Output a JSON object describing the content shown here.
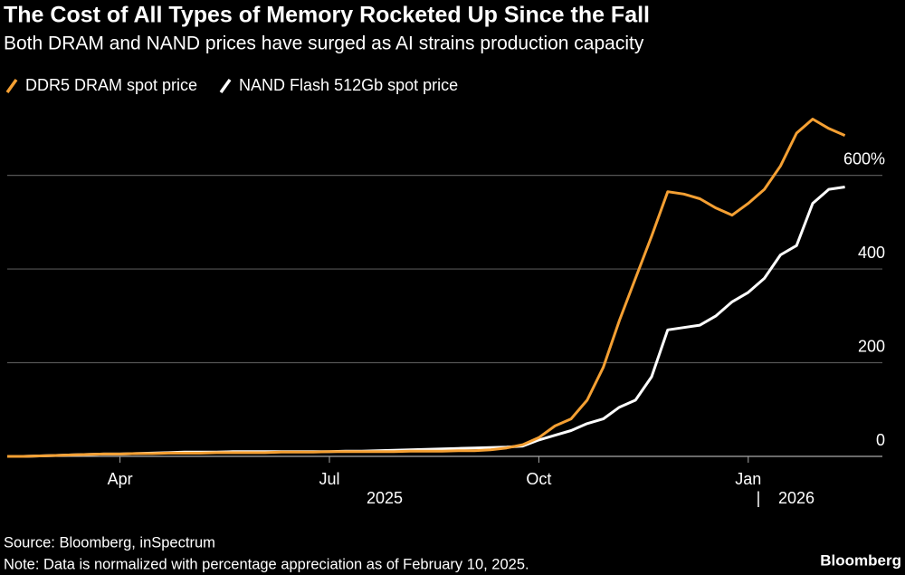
{
  "chart_data": {
    "type": "line",
    "title": "The Cost of All Types of Memory Rocketed Up Since the Fall",
    "subtitle": "Both DRAM and NAND prices have surged as AI strains production capacity",
    "categories": [
      null,
      null,
      null,
      null,
      null,
      null,
      null,
      "Apr",
      null,
      null,
      null,
      null,
      null,
      null,
      null,
      null,
      null,
      null,
      null,
      null,
      "Jul",
      null,
      null,
      null,
      null,
      null,
      null,
      null,
      null,
      null,
      null,
      null,
      null,
      "Oct",
      null,
      null,
      null,
      null,
      null,
      null,
      null,
      null,
      null,
      null,
      null,
      null,
      "Jan",
      null,
      null,
      null,
      null,
      null,
      null
    ],
    "year_labels": [
      "2025",
      "2026"
    ],
    "series": [
      {
        "name": "DDR5 DRAM spot price",
        "color": "#f5a033",
        "values": [
          0,
          0,
          1,
          2,
          3,
          4,
          5,
          5,
          6,
          6,
          7,
          7,
          7,
          8,
          8,
          8,
          8,
          9,
          9,
          9,
          10,
          10,
          10,
          10,
          10,
          11,
          11,
          11,
          12,
          12,
          14,
          18,
          25,
          40,
          65,
          80,
          120,
          190,
          290,
          380,
          470,
          565,
          560,
          550,
          530,
          515,
          540,
          570,
          620,
          690,
          720,
          700,
          685
        ]
      },
      {
        "name": "NAND Flash 512Gb spot price",
        "color": "#ffffff",
        "values": [
          0,
          0,
          1,
          2,
          3,
          4,
          5,
          5,
          6,
          7,
          8,
          9,
          9,
          9,
          10,
          10,
          10,
          10,
          10,
          10,
          10,
          11,
          11,
          12,
          13,
          14,
          15,
          16,
          17,
          18,
          19,
          20,
          22,
          35,
          45,
          55,
          70,
          80,
          105,
          120,
          170,
          270,
          275,
          280,
          300,
          330,
          350,
          380,
          430,
          450,
          540,
          570,
          575
        ]
      }
    ],
    "ylim": [
      0,
      750
    ],
    "yticks": [
      0,
      200,
      400,
      {
        "value": 600,
        "label": "600%"
      }
    ],
    "grid": true,
    "source": "Source: Bloomberg, inSpectrum",
    "note": "Note: Data is normalized with percentage appreciation as of February 10, 2025.",
    "brand": "Bloomberg"
  }
}
